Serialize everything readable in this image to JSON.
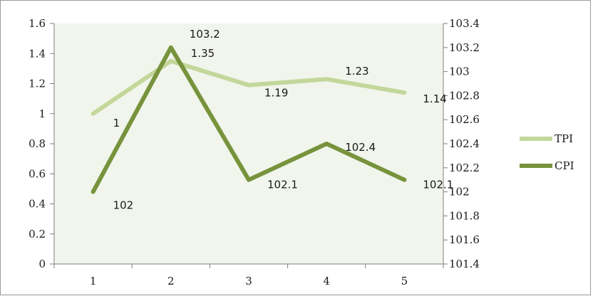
{
  "chart_data": {
    "type": "line",
    "categories": [
      "1",
      "2",
      "3",
      "4",
      "5"
    ],
    "x_ticks": [
      "1",
      "2",
      "3",
      "4",
      "5"
    ],
    "y_left_ticks": [
      "0",
      "0.2",
      "0.4",
      "0.6",
      "0.8",
      "1",
      "1.2",
      "1.4",
      "1.6"
    ],
    "y_right_ticks": [
      "101.4",
      "101.6",
      "101.8",
      "102",
      "102.2",
      "102.4",
      "102.6",
      "102.8",
      "103",
      "103.2",
      "103.4"
    ],
    "ylim_left": [
      0,
      1.6
    ],
    "ylim_right": [
      101.4,
      103.4
    ],
    "grid": false,
    "legend_position": "right",
    "series": [
      {
        "name": "TPI",
        "axis": "left",
        "color": "#c4d79b",
        "values": [
          1,
          1.35,
          1.19,
          1.23,
          1.14
        ],
        "labels": [
          "1",
          "1.35",
          "1.19",
          "1.23",
          "1.14"
        ]
      },
      {
        "name": "CPI",
        "axis": "right",
        "color": "#77933c",
        "values": [
          102,
          103.2,
          102.1,
          102.4,
          102.1
        ],
        "labels": [
          "102",
          "103.2",
          "102.1",
          "102.4",
          "102.1"
        ]
      }
    ]
  }
}
